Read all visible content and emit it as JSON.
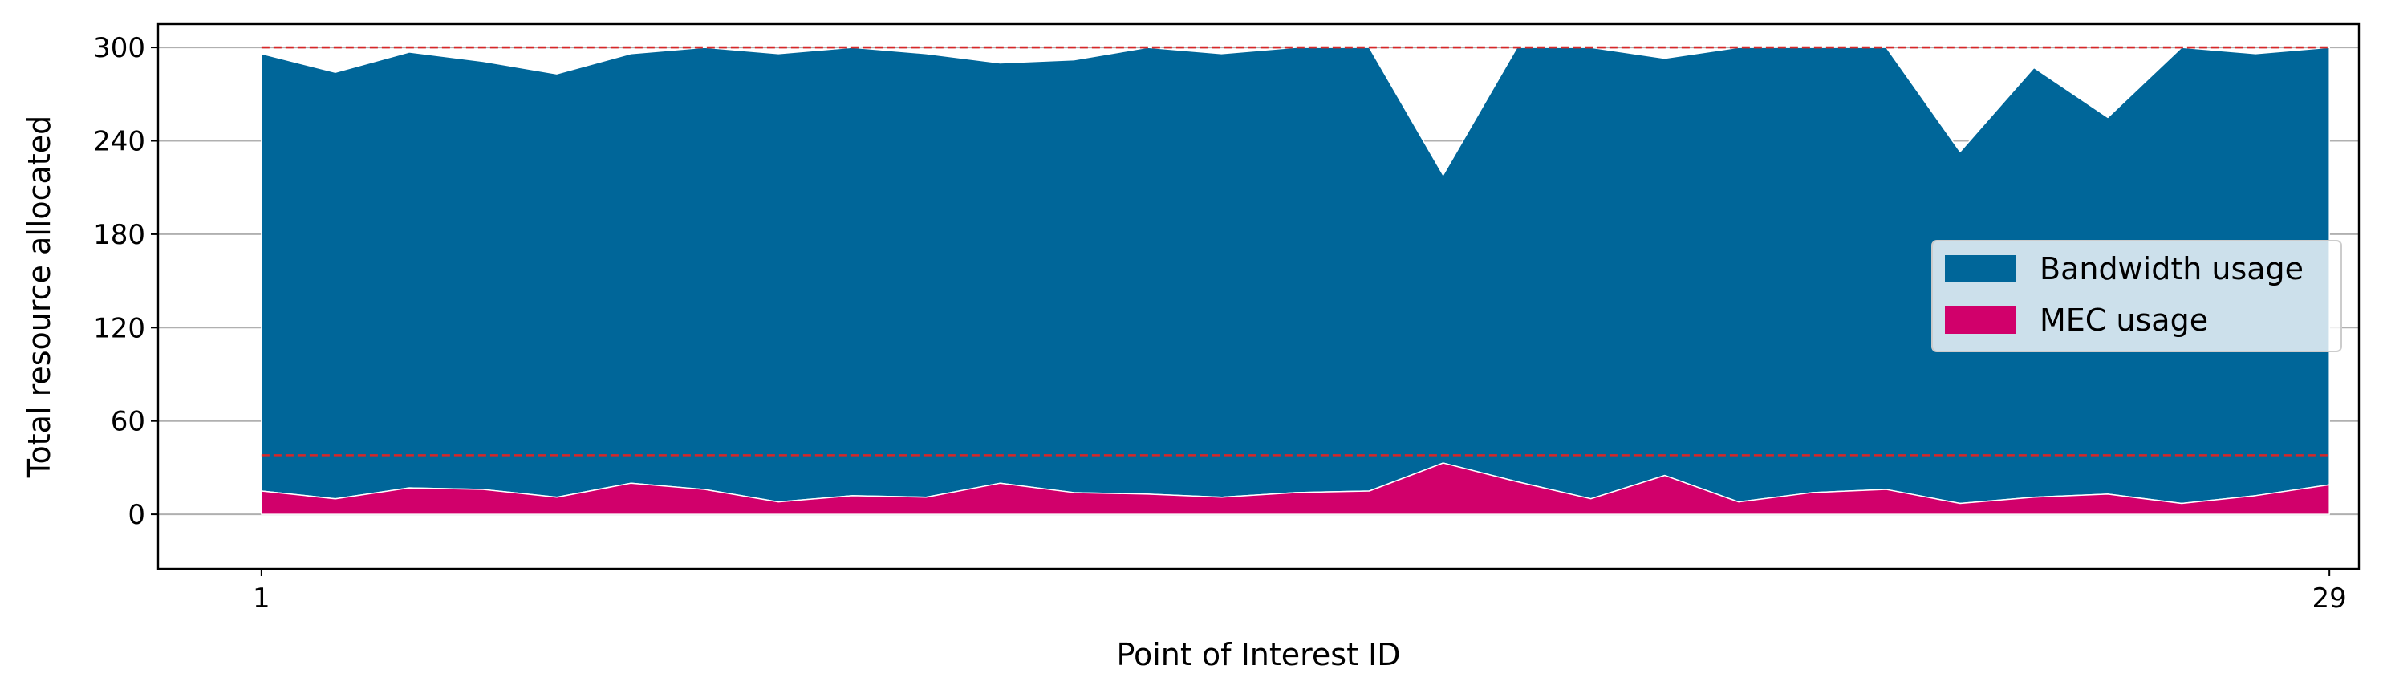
{
  "chart_data": {
    "type": "area",
    "stacked": true,
    "title": "",
    "xlabel": "Point of Interest ID",
    "ylabel": "Total resource allocated",
    "xlim": [
      -0.4,
      29.4
    ],
    "ylim": [
      -35,
      315
    ],
    "x": [
      1,
      2,
      3,
      4,
      5,
      6,
      7,
      8,
      9,
      10,
      11,
      12,
      13,
      14,
      15,
      16,
      17,
      18,
      19,
      20,
      21,
      22,
      23,
      24,
      25,
      26,
      27,
      28,
      29
    ],
    "x_tick_labels": [
      "1",
      "29"
    ],
    "x_ticks": [
      1,
      29
    ],
    "y_ticks": [
      0,
      60,
      120,
      180,
      240,
      300
    ],
    "y_tick_labels": [
      "0",
      "60",
      "120",
      "180",
      "240",
      "300"
    ],
    "grid": "y",
    "legend_position": "center-right",
    "series": [
      {
        "name": "MEC usage",
        "color": "#d1006b",
        "values": [
          15,
          10,
          17,
          16,
          11,
          20,
          16,
          8,
          12,
          11,
          20,
          14,
          13,
          11,
          14,
          15,
          33,
          21,
          10,
          25,
          8,
          14,
          16,
          7,
          11,
          13,
          7,
          12,
          19
        ]
      },
      {
        "name": "Bandwidth usage",
        "color": "#006699",
        "totals": [
          296,
          284,
          297,
          291,
          283,
          296,
          300,
          296,
          300,
          296,
          290,
          292,
          300,
          296,
          300,
          300,
          218,
          300,
          300,
          293,
          300,
          300,
          300,
          233,
          287,
          255,
          300,
          296,
          300
        ]
      }
    ],
    "reference_lines": [
      {
        "y": 300,
        "color": "#d62728",
        "style": "dashed"
      },
      {
        "y": 38,
        "color": "#d62728",
        "style": "dashed"
      }
    ]
  }
}
